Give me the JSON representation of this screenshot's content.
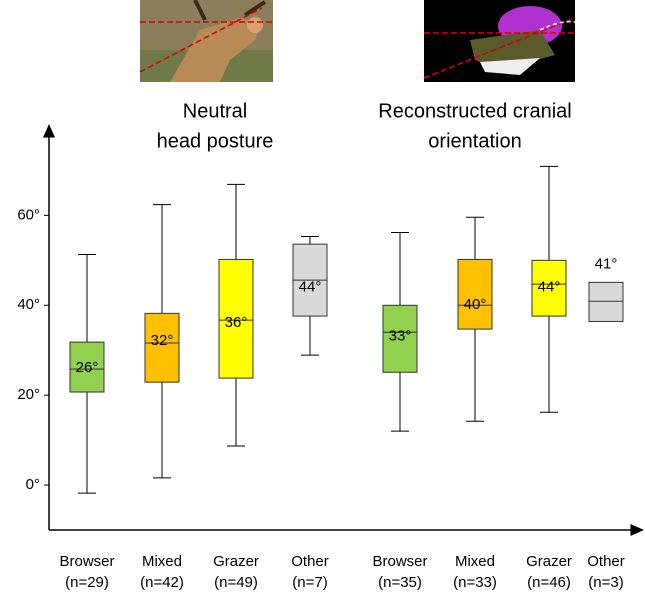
{
  "chart_data": {
    "type": "box",
    "group_titles": [
      [
        "Neutral",
        "head posture"
      ],
      [
        "Reconstructed cranial",
        "orientation"
      ]
    ],
    "categories": [
      "Browser",
      "Mixed",
      "Grazer",
      "Other",
      "Browser",
      "Mixed",
      "Grazer",
      "Other"
    ],
    "n_labels": [
      "(n=29)",
      "(n=42)",
      "(n=49)",
      "(n=7)",
      "(n=35)",
      "(n=33)",
      "(n=46)",
      "(n=3)"
    ],
    "group": [
      0,
      0,
      0,
      0,
      1,
      1,
      1,
      1
    ],
    "colors": [
      "#92d050",
      "#ffc000",
      "#ffff00",
      "#d9d9d9",
      "#92d050",
      "#ffc000",
      "#ffff00",
      "#d9d9d9"
    ],
    "whisker_low": [
      -1.8,
      1.6,
      8.7,
      28.9,
      12,
      14.2,
      16.2,
      null
    ],
    "q1": [
      20.7,
      22.9,
      23.8,
      37.6,
      25.1,
      34.7,
      37.6,
      36.4
    ],
    "median": [
      25.8,
      31.6,
      36.7,
      45.6,
      34,
      40,
      44.7,
      40.9
    ],
    "q3": [
      31.8,
      38.2,
      50.2,
      53.6,
      40,
      50.2,
      50,
      45.1
    ],
    "whisker_high": [
      51.3,
      62.4,
      66.9,
      55.3,
      56.2,
      59.6,
      70.9,
      null
    ],
    "means": [
      26,
      32,
      36,
      44,
      33,
      40,
      44,
      41
    ],
    "value_labels": [
      "26°",
      "32°",
      "36°",
      "44°",
      "33°",
      "40°",
      "44°",
      "41°"
    ],
    "ylim": [
      -10,
      79
    ],
    "yticks": [
      {
        "value": 0,
        "label": "0°"
      },
      {
        "value": 20,
        "label": "20°"
      },
      {
        "value": 40,
        "label": "40°"
      },
      {
        "value": 60,
        "label": "60°"
      }
    ]
  }
}
